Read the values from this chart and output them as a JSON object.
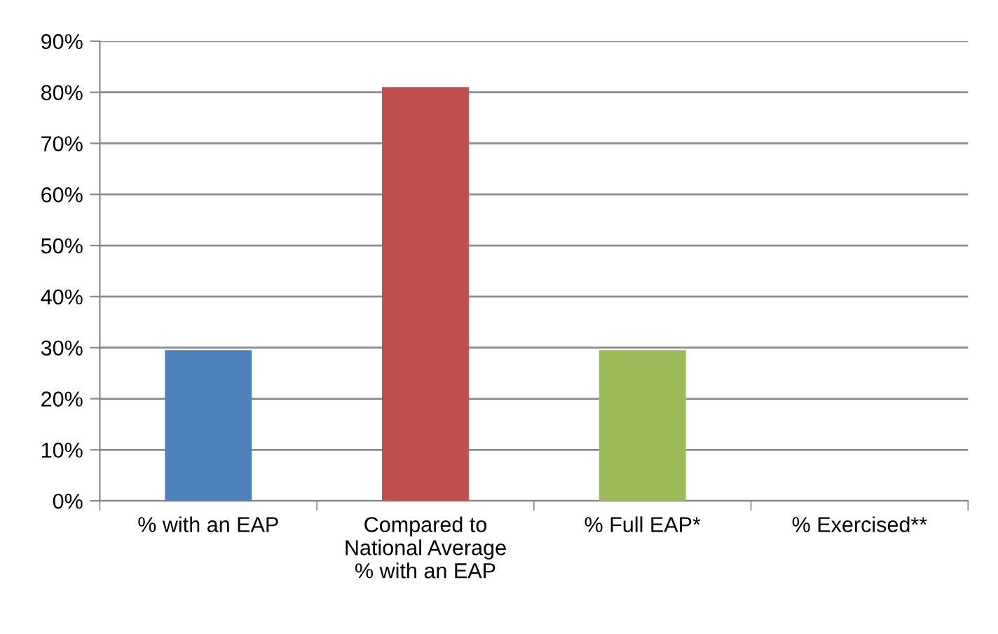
{
  "chart_data": {
    "type": "bar",
    "categories": [
      "% with an EAP",
      "Compared to\nNational Average\n% with an EAP",
      "% Full EAP*",
      "% Exercised**"
    ],
    "values": [
      29.5,
      81,
      29.5,
      null
    ],
    "colors": [
      "#4f81bd",
      "#c0504d",
      "#9bbb59",
      "#8064a2"
    ],
    "ylim": [
      0,
      90
    ],
    "yticks": [
      {
        "value": 0,
        "label": "0%"
      },
      {
        "value": 10,
        "label": "10%"
      },
      {
        "value": 20,
        "label": "20%"
      },
      {
        "value": 30,
        "label": "30%"
      },
      {
        "value": 40,
        "label": "40%"
      },
      {
        "value": 50,
        "label": "50%"
      },
      {
        "value": 60,
        "label": "60%"
      },
      {
        "value": 70,
        "label": "70%"
      },
      {
        "value": 80,
        "label": "80%"
      },
      {
        "value": 90,
        "label": "90%"
      }
    ],
    "grid": "y",
    "legend": false
  }
}
